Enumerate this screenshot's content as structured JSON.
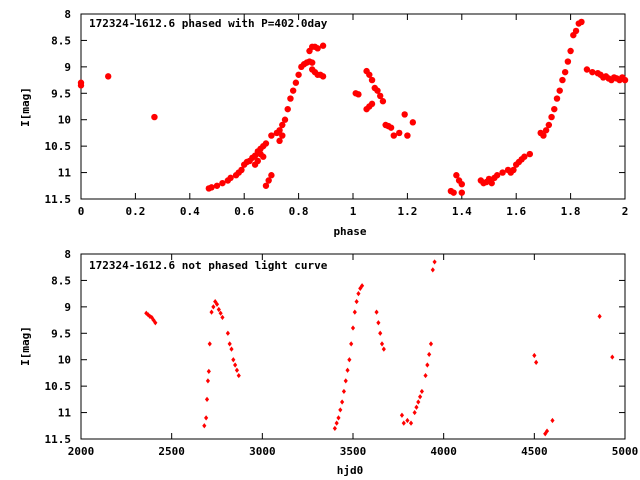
{
  "chart_data": [
    {
      "type": "scatter",
      "title": "172324-1612.6 phased with P=402.0day",
      "xlabel": "phase",
      "ylabel": "I[mag]",
      "xlim": [
        0,
        2
      ],
      "ylim": [
        11.5,
        8
      ],
      "y_inverted": true,
      "xticks": [
        0,
        0.2,
        0.4,
        0.6,
        0.8,
        1,
        1.2,
        1.4,
        1.6,
        1.8,
        2
      ],
      "xtick_labels": [
        "0",
        "0.2",
        "0.4",
        "0.6",
        "0.8",
        "1",
        "1.2",
        "1.4",
        "1.6",
        "1.8",
        "2"
      ],
      "yticks": [
        8,
        8.5,
        9,
        9.5,
        10,
        10.5,
        11,
        11.5
      ],
      "ytick_labels": [
        "8",
        "8.5",
        "9",
        "9.5",
        "10",
        "10.5",
        "11",
        "11.5"
      ],
      "grid": false,
      "marker": "filled-circle",
      "color": "#ff0000",
      "series": [
        {
          "points": [
            [
              0.0,
              9.3
            ],
            [
              0.0,
              9.35
            ],
            [
              0.1,
              9.18
            ],
            [
              0.27,
              9.95
            ],
            [
              0.47,
              11.3
            ],
            [
              0.48,
              11.28
            ],
            [
              0.5,
              11.25
            ],
            [
              0.52,
              11.2
            ],
            [
              0.54,
              11.15
            ],
            [
              0.55,
              11.1
            ],
            [
              0.57,
              11.05
            ],
            [
              0.58,
              11.0
            ],
            [
              0.59,
              10.95
            ],
            [
              0.6,
              10.85
            ],
            [
              0.61,
              10.8
            ],
            [
              0.62,
              10.78
            ],
            [
              0.63,
              10.72
            ],
            [
              0.64,
              10.68
            ],
            [
              0.64,
              10.85
            ],
            [
              0.65,
              10.6
            ],
            [
              0.66,
              10.55
            ],
            [
              0.66,
              10.65
            ],
            [
              0.67,
              10.5
            ],
            [
              0.68,
              10.45
            ],
            [
              0.67,
              10.7
            ],
            [
              0.65,
              10.78
            ],
            [
              0.68,
              11.25
            ],
            [
              0.69,
              11.15
            ],
            [
              0.7,
              11.05
            ],
            [
              0.7,
              10.3
            ],
            [
              0.72,
              10.25
            ],
            [
              0.73,
              10.2
            ],
            [
              0.74,
              10.1
            ],
            [
              0.74,
              10.3
            ],
            [
              0.73,
              10.4
            ],
            [
              0.75,
              10.0
            ],
            [
              0.76,
              9.8
            ],
            [
              0.77,
              9.6
            ],
            [
              0.78,
              9.45
            ],
            [
              0.79,
              9.3
            ],
            [
              0.8,
              9.15
            ],
            [
              0.81,
              9.0
            ],
            [
              0.82,
              8.95
            ],
            [
              0.83,
              8.92
            ],
            [
              0.84,
              8.9
            ],
            [
              0.85,
              8.92
            ],
            [
              0.85,
              9.05
            ],
            [
              0.86,
              9.1
            ],
            [
              0.87,
              9.15
            ],
            [
              0.88,
              9.15
            ],
            [
              0.89,
              9.18
            ],
            [
              0.84,
              8.7
            ],
            [
              0.85,
              8.62
            ],
            [
              0.86,
              8.62
            ],
            [
              0.87,
              8.65
            ],
            [
              0.89,
              8.6
            ],
            [
              1.01,
              9.5
            ],
            [
              1.02,
              9.52
            ],
            [
              1.05,
              9.08
            ],
            [
              1.06,
              9.15
            ],
            [
              1.07,
              9.25
            ],
            [
              1.05,
              9.8
            ],
            [
              1.06,
              9.75
            ],
            [
              1.07,
              9.7
            ],
            [
              1.08,
              9.4
            ],
            [
              1.09,
              9.45
            ],
            [
              1.1,
              9.55
            ],
            [
              1.11,
              9.65
            ],
            [
              1.12,
              10.1
            ],
            [
              1.13,
              10.12
            ],
            [
              1.14,
              10.15
            ],
            [
              1.15,
              10.3
            ],
            [
              1.17,
              10.25
            ],
            [
              1.19,
              9.9
            ],
            [
              1.2,
              10.3
            ],
            [
              1.22,
              10.05
            ],
            [
              1.36,
              11.35
            ],
            [
              1.37,
              11.38
            ],
            [
              1.38,
              11.05
            ],
            [
              1.39,
              11.15
            ],
            [
              1.4,
              11.38
            ],
            [
              1.4,
              11.22
            ],
            [
              1.47,
              11.15
            ],
            [
              1.48,
              11.2
            ],
            [
              1.49,
              11.18
            ],
            [
              1.5,
              11.12
            ],
            [
              1.51,
              11.2
            ],
            [
              1.52,
              11.1
            ],
            [
              1.53,
              11.05
            ],
            [
              1.55,
              11.0
            ],
            [
              1.57,
              10.95
            ],
            [
              1.58,
              11.0
            ],
            [
              1.59,
              10.95
            ],
            [
              1.6,
              10.85
            ],
            [
              1.61,
              10.8
            ],
            [
              1.62,
              10.75
            ],
            [
              1.63,
              10.7
            ],
            [
              1.65,
              10.65
            ],
            [
              1.69,
              10.25
            ],
            [
              1.7,
              10.3
            ],
            [
              1.71,
              10.2
            ],
            [
              1.72,
              10.1
            ],
            [
              1.73,
              9.95
            ],
            [
              1.74,
              9.8
            ],
            [
              1.75,
              9.6
            ],
            [
              1.76,
              9.45
            ],
            [
              1.77,
              9.25
            ],
            [
              1.78,
              9.1
            ],
            [
              1.79,
              8.9
            ],
            [
              1.8,
              8.7
            ],
            [
              1.81,
              8.4
            ],
            [
              1.82,
              8.32
            ],
            [
              1.83,
              8.18
            ],
            [
              1.84,
              8.15
            ],
            [
              1.86,
              9.05
            ],
            [
              1.88,
              9.1
            ],
            [
              1.9,
              9.12
            ],
            [
              1.91,
              9.15
            ],
            [
              1.92,
              9.2
            ],
            [
              1.93,
              9.18
            ],
            [
              1.94,
              9.22
            ],
            [
              1.95,
              9.25
            ],
            [
              1.96,
              9.2
            ],
            [
              1.97,
              9.22
            ],
            [
              1.98,
              9.25
            ],
            [
              1.99,
              9.2
            ],
            [
              2.0,
              9.25
            ]
          ]
        }
      ]
    },
    {
      "type": "scatter",
      "title": "172324-1612.6 not phased light curve",
      "xlabel": "hjd0",
      "ylabel": "I[mag]",
      "xlim": [
        2000,
        5000
      ],
      "ylim": [
        11.5,
        8
      ],
      "y_inverted": true,
      "xticks": [
        2000,
        2500,
        3000,
        3500,
        4000,
        4500,
        5000
      ],
      "xtick_labels": [
        "2000",
        "2500",
        "3000",
        "3500",
        "4000",
        "4500",
        "5000"
      ],
      "yticks": [
        8,
        8.5,
        9,
        9.5,
        10,
        10.5,
        11,
        11.5
      ],
      "ytick_labels": [
        "8",
        "8.5",
        "9",
        "9.5",
        "10",
        "10.5",
        "11",
        "11.5"
      ],
      "grid": false,
      "marker": "small-diamond",
      "color": "#ff0000",
      "series": [
        {
          "points": [
            [
              2360,
              9.12
            ],
            [
              2370,
              9.15
            ],
            [
              2380,
              9.18
            ],
            [
              2390,
              9.2
            ],
            [
              2400,
              9.25
            ],
            [
              2410,
              9.3
            ],
            [
              2680,
              11.25
            ],
            [
              2690,
              11.1
            ],
            [
              2695,
              10.75
            ],
            [
              2700,
              10.4
            ],
            [
              2705,
              10.22
            ],
            [
              2710,
              9.7
            ],
            [
              2720,
              9.1
            ],
            [
              2730,
              9.0
            ],
            [
              2740,
              8.9
            ],
            [
              2750,
              8.95
            ],
            [
              2760,
              9.05
            ],
            [
              2770,
              9.12
            ],
            [
              2780,
              9.2
            ],
            [
              2810,
              9.5
            ],
            [
              2820,
              9.7
            ],
            [
              2830,
              9.8
            ],
            [
              2840,
              10.0
            ],
            [
              2850,
              10.1
            ],
            [
              2860,
              10.2
            ],
            [
              2870,
              10.3
            ],
            [
              3400,
              11.3
            ],
            [
              3410,
              11.2
            ],
            [
              3420,
              11.1
            ],
            [
              3430,
              10.95
            ],
            [
              3440,
              10.8
            ],
            [
              3450,
              10.6
            ],
            [
              3460,
              10.4
            ],
            [
              3470,
              10.2
            ],
            [
              3480,
              10.0
            ],
            [
              3490,
              9.7
            ],
            [
              3500,
              9.4
            ],
            [
              3510,
              9.1
            ],
            [
              3520,
              8.9
            ],
            [
              3530,
              8.75
            ],
            [
              3540,
              8.65
            ],
            [
              3550,
              8.6
            ],
            [
              3630,
              9.1
            ],
            [
              3640,
              9.3
            ],
            [
              3650,
              9.5
            ],
            [
              3660,
              9.7
            ],
            [
              3670,
              9.8
            ],
            [
              3770,
              11.05
            ],
            [
              3780,
              11.2
            ],
            [
              3800,
              11.15
            ],
            [
              3820,
              11.2
            ],
            [
              3840,
              11.0
            ],
            [
              3850,
              10.9
            ],
            [
              3860,
              10.8
            ],
            [
              3870,
              10.7
            ],
            [
              3880,
              10.6
            ],
            [
              3900,
              10.3
            ],
            [
              3910,
              10.1
            ],
            [
              3920,
              9.9
            ],
            [
              3930,
              9.7
            ],
            [
              3940,
              8.3
            ],
            [
              3950,
              8.15
            ],
            [
              4500,
              9.92
            ],
            [
              4510,
              10.05
            ],
            [
              4560,
              11.4
            ],
            [
              4570,
              11.35
            ],
            [
              4600,
              11.15
            ],
            [
              4860,
              9.18
            ],
            [
              4930,
              9.95
            ]
          ]
        }
      ]
    }
  ]
}
